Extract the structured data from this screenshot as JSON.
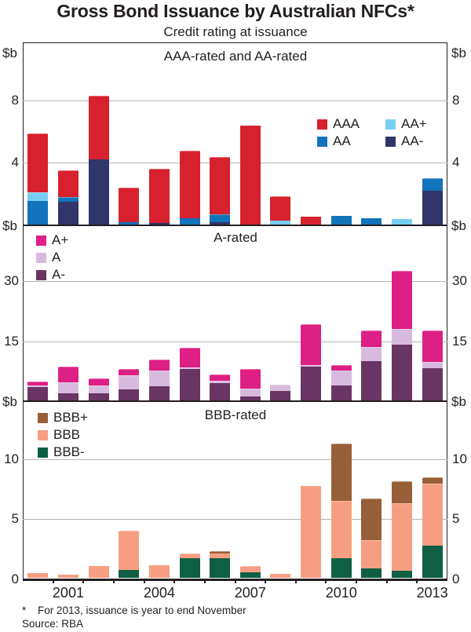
{
  "chart_data": {
    "type": "bar",
    "title": "Gross Bond Issuance by Australian NFCs*",
    "subtitle": "Credit rating at issuance",
    "unit_label": "$b",
    "categories": [
      "2000",
      "2001",
      "2002",
      "2003",
      "2004",
      "2005",
      "2006",
      "2007",
      "2008",
      "2009",
      "2010",
      "2011",
      "2012",
      "2013"
    ],
    "x_tick_labels": [
      "2001",
      "2004",
      "2007",
      "2010",
      "2013"
    ],
    "footnote": {
      "star": "*",
      "text": "For 2013, issuance is year to end November",
      "source": "Source: RBA"
    },
    "panels": [
      {
        "title": "AAA-rated and AA-rated",
        "ylim": [
          0,
          11.7
        ],
        "gridlines": [
          4,
          8
        ],
        "show_zero_label": false,
        "legend_columns": 2,
        "legend_items": [
          {
            "label": "AAA",
            "color": "#d7212e"
          },
          {
            "label": "AA+",
            "color": "#76cff2"
          },
          {
            "label": "AA",
            "color": "#1173b9"
          },
          {
            "label": "AA-",
            "color": "#30356a"
          }
        ],
        "series": [
          {
            "name": "AA-",
            "color": "#30356a",
            "values": [
              0,
              1.45,
              4.15,
              0,
              0.1,
              0,
              0.15,
              0,
              0,
              0,
              0,
              0,
              0,
              2.15
            ]
          },
          {
            "name": "AA",
            "color": "#1173b9",
            "values": [
              1.5,
              0.3,
              0,
              0.15,
              0,
              0.4,
              0.5,
              0,
              0,
              0,
              0.55,
              0.4,
              0,
              0.8
            ]
          },
          {
            "name": "AA+",
            "color": "#76cff2",
            "values": [
              0.55,
              0,
              0,
              0,
              0,
              0,
              0,
              0,
              0.25,
              0,
              0,
              0,
              0.35,
              0
            ]
          },
          {
            "name": "AAA",
            "color": "#d7212e",
            "values": [
              3.75,
              1.7,
              4.1,
              2.2,
              3.45,
              4.3,
              3.65,
              6.35,
              1.55,
              0.5,
              0,
              0,
              0,
              0
            ]
          }
        ]
      },
      {
        "title": "A-rated",
        "ylim": [
          0,
          44
        ],
        "gridlines": [
          15,
          30
        ],
        "show_zero_label": false,
        "legend_columns": 1,
        "legend_items": [
          {
            "label": "A+",
            "color": "#de1f85"
          },
          {
            "label": "A",
            "color": "#d8bade"
          },
          {
            "label": "A-",
            "color": "#693564"
          }
        ],
        "series": [
          {
            "name": "A-",
            "color": "#693564",
            "values": [
              3.3,
              1.8,
              1.8,
              2.7,
              3.5,
              7.9,
              4.6,
              0.9,
              2.3,
              8.4,
              3.8,
              9.8,
              13.9,
              8.0
            ]
          },
          {
            "name": "A",
            "color": "#d8bade",
            "values": [
              0.5,
              2.8,
              2.0,
              3.6,
              4.0,
              0.4,
              0.3,
              2.0,
              1.7,
              0.5,
              3.7,
              3.5,
              3.9,
              1.7
            ]
          },
          {
            "name": "A+",
            "color": "#de1f85",
            "values": [
              1.0,
              3.9,
              1.7,
              1.5,
              2.7,
              4.9,
              1.6,
              4.9,
              0,
              10.2,
              1.3,
              4.1,
              14.7,
              7.8
            ]
          }
        ]
      },
      {
        "title": "BBB-rated",
        "ylim": [
          0,
          14.9
        ],
        "gridlines": [
          5,
          10
        ],
        "show_zero_label": true,
        "legend_columns": 1,
        "legend_items": [
          {
            "label": "BBB+",
            "color": "#975f38"
          },
          {
            "label": "BBB",
            "color": "#f69e82"
          },
          {
            "label": "BBB-",
            "color": "#0f5f43"
          }
        ],
        "series": [
          {
            "name": "BBB-",
            "color": "#0f5f43",
            "values": [
              0,
              0,
              0,
              0.7,
              0,
              1.7,
              1.7,
              0.5,
              0,
              0,
              1.7,
              0.85,
              0.6,
              2.7
            ]
          },
          {
            "name": "BBB",
            "color": "#f69e82",
            "values": [
              0.45,
              0.3,
              1.0,
              3.25,
              1.1,
              0.4,
              0.45,
              0.55,
              0.35,
              7.7,
              4.8,
              2.35,
              5.65,
              5.25
            ]
          },
          {
            "name": "BBB+",
            "color": "#975f38",
            "values": [
              0,
              0,
              0,
              0,
              0,
              0,
              0.1,
              0,
              0,
              0,
              4.8,
              3.5,
              1.85,
              0.5
            ]
          }
        ]
      }
    ]
  }
}
